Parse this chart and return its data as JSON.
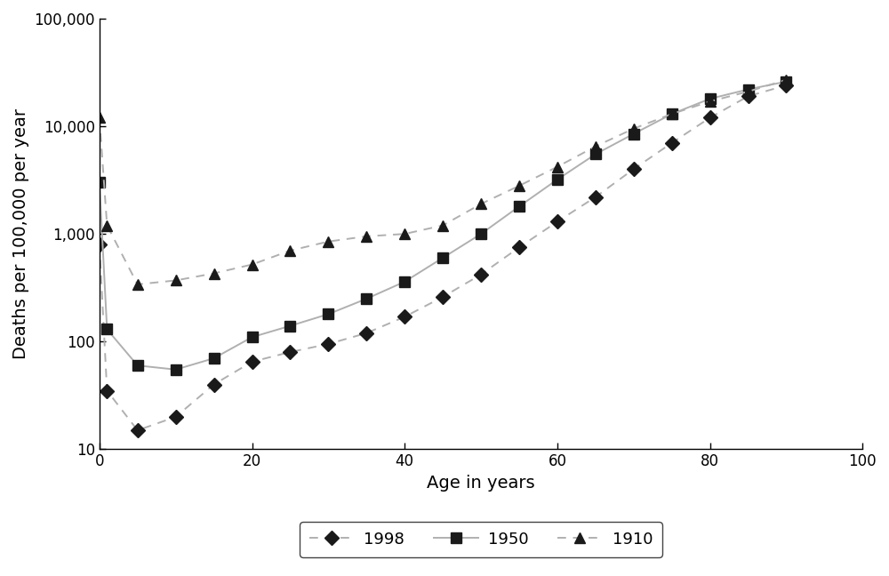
{
  "ages": [
    0,
    1,
    5,
    10,
    15,
    20,
    25,
    30,
    35,
    40,
    45,
    50,
    55,
    60,
    65,
    70,
    75,
    80,
    85,
    90
  ],
  "series_1998": [
    800,
    35,
    15,
    20,
    40,
    65,
    80,
    95,
    120,
    170,
    260,
    420,
    750,
    1300,
    2200,
    4000,
    7000,
    12000,
    19000,
    24000
  ],
  "series_1950": [
    3000,
    130,
    60,
    55,
    70,
    110,
    140,
    180,
    250,
    360,
    600,
    1000,
    1800,
    3200,
    5500,
    8500,
    13000,
    18000,
    22000,
    26000
  ],
  "series_1910": [
    12000,
    1200,
    340,
    370,
    430,
    520,
    700,
    850,
    950,
    1000,
    1200,
    1900,
    2800,
    4200,
    6500,
    9500,
    13000,
    17000,
    21000,
    27000
  ],
  "xlabel": "Age in years",
  "ylabel": "Deaths per 100,000 per year",
  "xlim": [
    0,
    100
  ],
  "ylim": [
    10,
    100000
  ],
  "xticks": [
    0,
    20,
    40,
    60,
    80,
    100
  ],
  "yticks": [
    10,
    100,
    1000,
    10000,
    100000
  ],
  "ytick_labels": [
    "10",
    "100",
    "1,000",
    "10,000",
    "100,000"
  ],
  "line_color": "#b0b0b0",
  "marker_color": "#1a1a1a",
  "legend_labels": [
    "1998",
    "1950",
    "1910"
  ],
  "markers": [
    "D",
    "s",
    "^"
  ],
  "background_color": "#ffffff",
  "fontsize_axis_label": 14,
  "fontsize_ticks": 12,
  "fontsize_legend": 13
}
